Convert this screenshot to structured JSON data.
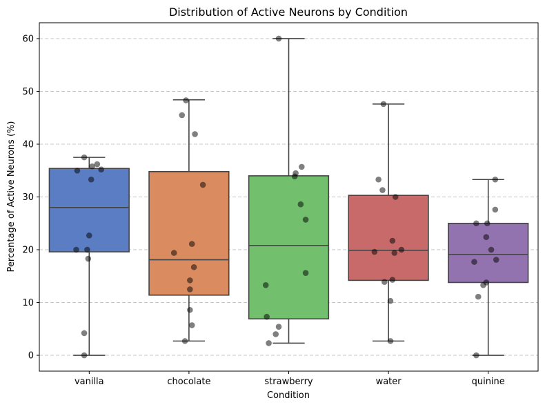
{
  "chart_data": {
    "type": "box",
    "title": "Distribution of Active Neurons by Condition",
    "xlabel": "Condition",
    "ylabel": "Percentage of Active Neurons (%)",
    "categories": [
      "vanilla",
      "chocolate",
      "strawberry",
      "water",
      "quinine"
    ],
    "ylim": [
      -3,
      63
    ],
    "yticks": [
      0,
      10,
      20,
      30,
      40,
      50,
      60
    ],
    "grid": "horizontal dashed",
    "boxes": [
      {
        "name": "vanilla",
        "color": "#5A7DC4",
        "q1": 19.6,
        "median": 28.0,
        "q3": 35.4,
        "whisker_low": 0.0,
        "whisker_high": 37.5
      },
      {
        "name": "chocolate",
        "color": "#DB8B60",
        "q1": 11.4,
        "median": 18.1,
        "q3": 34.8,
        "whisker_low": 2.7,
        "whisker_high": 48.4
      },
      {
        "name": "strawberry",
        "color": "#72BF6E",
        "q1": 6.9,
        "median": 20.8,
        "q3": 34.0,
        "whisker_low": 2.3,
        "whisker_high": 60.0
      },
      {
        "name": "water",
        "color": "#C96A6A",
        "q1": 14.2,
        "median": 19.9,
        "q3": 30.3,
        "whisker_low": 2.7,
        "whisker_high": 47.6
      },
      {
        "name": "quinine",
        "color": "#9273AF",
        "q1": 13.8,
        "median": 19.1,
        "q3": 25.0,
        "whisker_low": 0.0,
        "whisker_high": 33.3
      }
    ],
    "points": [
      {
        "category": "vanilla",
        "values": [
          37.5,
          36.2,
          35.8,
          35.2,
          35.0,
          33.3,
          22.7,
          20.0,
          20.0,
          18.3,
          4.2,
          0.0
        ],
        "jitter": [
          -0.05,
          0.08,
          0.03,
          0.12,
          -0.12,
          0.02,
          0.0,
          -0.13,
          -0.02,
          -0.01,
          -0.05,
          -0.05
        ]
      },
      {
        "category": "chocolate",
        "values": [
          48.3,
          45.5,
          41.9,
          32.3,
          21.1,
          19.4,
          16.7,
          14.2,
          12.5,
          8.6,
          5.7,
          2.7
        ],
        "jitter": [
          -0.03,
          -0.07,
          0.06,
          0.14,
          0.03,
          -0.15,
          0.05,
          0.01,
          0.01,
          0.01,
          0.03,
          -0.04
        ]
      },
      {
        "category": "strawberry",
        "values": [
          60.0,
          35.7,
          34.5,
          33.9,
          28.6,
          25.7,
          15.6,
          13.3,
          7.3,
          5.4,
          4.0,
          2.3
        ],
        "jitter": [
          -0.1,
          0.13,
          0.07,
          0.06,
          0.12,
          0.17,
          0.17,
          -0.23,
          -0.22,
          -0.1,
          -0.13,
          -0.2
        ]
      },
      {
        "category": "water",
        "values": [
          47.6,
          33.3,
          31.3,
          30.0,
          21.7,
          20.0,
          19.6,
          19.4,
          14.3,
          13.9,
          10.3,
          2.7
        ],
        "jitter": [
          -0.05,
          -0.1,
          -0.06,
          0.07,
          0.04,
          0.13,
          -0.14,
          0.06,
          0.04,
          -0.04,
          0.02,
          0.02
        ]
      },
      {
        "category": "quinine",
        "values": [
          33.3,
          27.6,
          25.0,
          25.0,
          22.4,
          20.0,
          18.1,
          17.7,
          13.8,
          13.3,
          11.1,
          0.0
        ],
        "jitter": [
          0.07,
          0.07,
          -0.12,
          -0.01,
          -0.02,
          0.03,
          0.08,
          -0.14,
          -0.02,
          -0.05,
          -0.1,
          -0.12
        ]
      }
    ]
  }
}
